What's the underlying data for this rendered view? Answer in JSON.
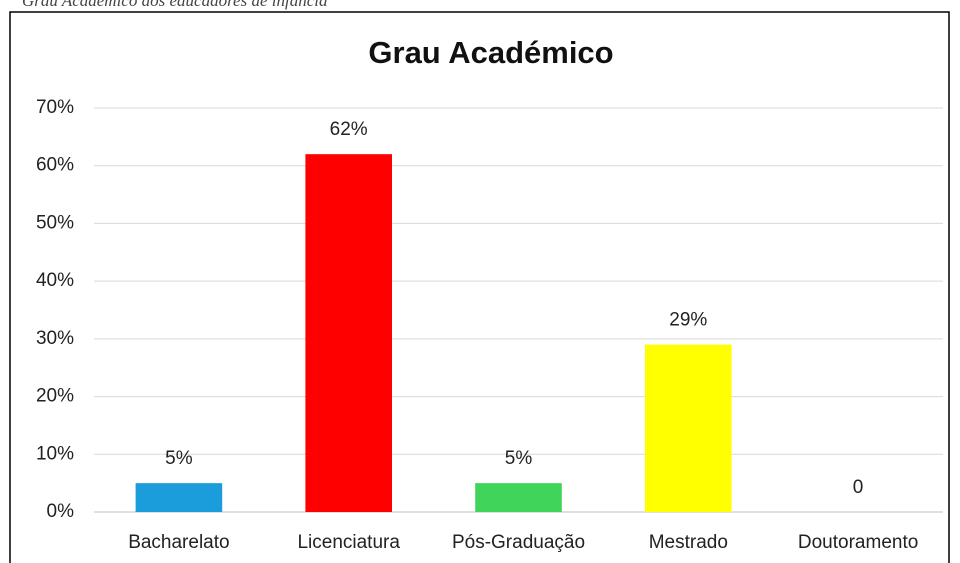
{
  "caption": "Grau Académico dos educadores de infância",
  "chart_data": {
    "type": "bar",
    "title": "Grau Académico",
    "categories": [
      "Bacharelato",
      "Licenciatura",
      "Pós-Graduação",
      "Mestrado",
      "Doutoramento"
    ],
    "values": [
      5,
      62,
      5,
      29,
      0
    ],
    "value_labels": [
      "5%",
      "62%",
      "5%",
      "29%",
      "0"
    ],
    "colors": [
      "#1b9ddb",
      "#ff0000",
      "#40d45b",
      "#ffff00",
      "#a5a5a5"
    ],
    "ylim": [
      0,
      70
    ],
    "yticks": [
      {
        "value": 0,
        "label": "0%"
      },
      {
        "value": 10,
        "label": "10%"
      },
      {
        "value": 20,
        "label": "20%"
      },
      {
        "value": 30,
        "label": "30%"
      },
      {
        "value": 40,
        "label": "40%"
      },
      {
        "value": 50,
        "label": "50%"
      },
      {
        "value": 60,
        "label": "60%"
      },
      {
        "value": 70,
        "label": "70%"
      }
    ],
    "grid": true
  }
}
